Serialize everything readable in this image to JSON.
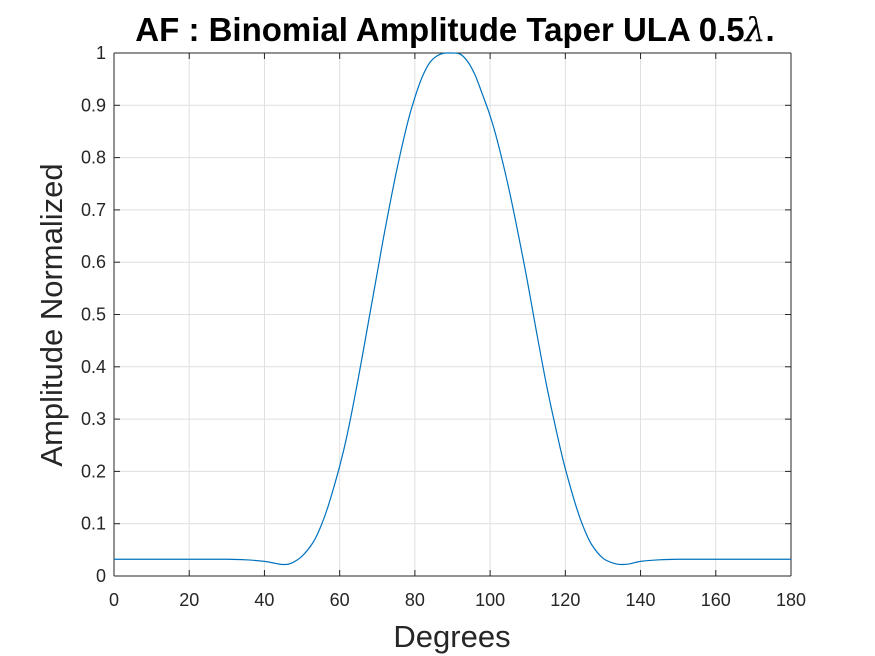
{
  "chart_data": {
    "type": "line",
    "title": "AF : Binomial Amplitude Taper ULA 0.5",
    "title_symbol": "λ",
    "title_suffix": ".",
    "xlabel": "Degrees",
    "ylabel": "Amplitude Normalized",
    "xlim": [
      0,
      180
    ],
    "ylim": [
      0,
      1
    ],
    "grid": true,
    "x_ticks": [
      0,
      20,
      40,
      60,
      80,
      100,
      120,
      140,
      160,
      180
    ],
    "x_tick_labels": [
      "0",
      "20",
      "40",
      "60",
      "80",
      "100",
      "120",
      "140",
      "160",
      "180"
    ],
    "y_ticks": [
      0,
      0.1,
      0.2,
      0.3,
      0.4,
      0.5,
      0.6,
      0.7,
      0.8,
      0.9,
      1
    ],
    "y_tick_labels": [
      "0",
      "0.1",
      "0.2",
      "0.3",
      "0.4",
      "0.5",
      "0.6",
      "0.7",
      "0.8",
      "0.9",
      "1"
    ],
    "series": [
      {
        "color": "#0072BD",
        "x": [
          0,
          10,
          20,
          30,
          35,
          40,
          43,
          45,
          47,
          50,
          53,
          55,
          57,
          60,
          62,
          65,
          68,
          70,
          72,
          75,
          78,
          80,
          82,
          84,
          86,
          88,
          90,
          92,
          94,
          96,
          98,
          100,
          102,
          105,
          108,
          110,
          112,
          115,
          118,
          120,
          123,
          125,
          127,
          130,
          133,
          135,
          137,
          140,
          145,
          150,
          160,
          170,
          180
        ],
        "y": [
          0.032,
          0.032,
          0.032,
          0.032,
          0.031,
          0.028,
          0.024,
          0.022,
          0.024,
          0.038,
          0.065,
          0.095,
          0.135,
          0.21,
          0.27,
          0.38,
          0.5,
          0.58,
          0.66,
          0.77,
          0.865,
          0.915,
          0.955,
          0.982,
          0.995,
          1.0,
          1.0,
          0.998,
          0.984,
          0.958,
          0.92,
          0.88,
          0.83,
          0.74,
          0.635,
          0.56,
          0.48,
          0.365,
          0.265,
          0.205,
          0.13,
          0.09,
          0.06,
          0.034,
          0.024,
          0.022,
          0.023,
          0.028,
          0.031,
          0.032,
          0.032,
          0.032,
          0.032
        ]
      }
    ]
  }
}
